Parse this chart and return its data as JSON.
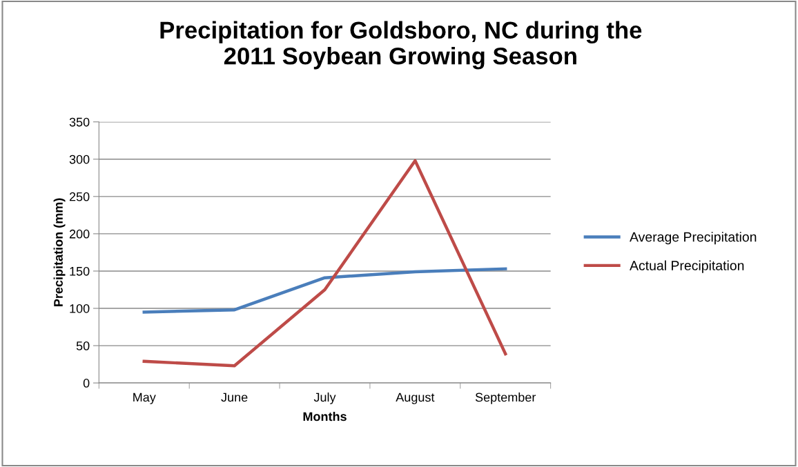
{
  "chart_data": {
    "type": "line",
    "title": "Precipitation for Goldsboro, NC during the\n2011 Soybean Growing Season",
    "xlabel": "Months",
    "ylabel": "Precipitation (mm)",
    "categories": [
      "May",
      "June",
      "July",
      "August",
      "September"
    ],
    "series": [
      {
        "name": "Average Precipitation",
        "color": "#4a7ebb",
        "values": [
          95,
          98,
          141,
          149,
          153
        ]
      },
      {
        "name": "Actual Precipitation",
        "color": "#be4b48",
        "values": [
          29,
          23,
          125,
          298,
          39
        ]
      }
    ],
    "ylim": [
      0,
      350
    ],
    "yticks": [
      0,
      50,
      100,
      150,
      200,
      250,
      300,
      350
    ],
    "grid": "y",
    "legend": "right",
    "marker": "none",
    "line_style": "solid"
  }
}
